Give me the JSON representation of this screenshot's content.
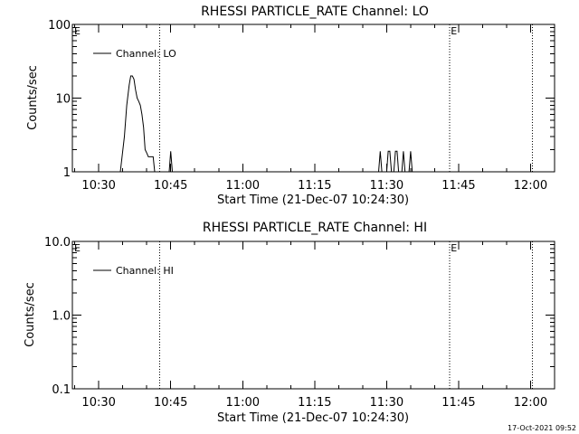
{
  "colors": {
    "background": "#ffffff",
    "foreground": "#000000"
  },
  "footer": {
    "timestamp": "17-Oct-2021 09:52"
  },
  "chart_data": [
    {
      "type": "line",
      "title": "RHESSI PARTICLE_RATE Channel: LO",
      "xlabel": "Start Time (21-Dec-07 10:24:30)",
      "ylabel": "Counts/sec",
      "yscale": "log",
      "ylim": [
        1,
        100
      ],
      "xlim": [
        "10:24:30",
        "12:05:00"
      ],
      "xticks": [
        "10:30",
        "10:45",
        "11:00",
        "11:15",
        "11:30",
        "11:45",
        "12:00"
      ],
      "yticks": [
        "1",
        "10",
        "100"
      ],
      "legend": {
        "position": "top-left",
        "entries": [
          "Channel: LO"
        ]
      },
      "vlines": [
        {
          "x": "10:42:40",
          "style": "dotted",
          "label": ""
        },
        {
          "x": "11:43:10",
          "style": "dotted",
          "label": "E"
        },
        {
          "x": "12:00:20",
          "style": "dotted",
          "label": ""
        }
      ],
      "corner_marks": [
        {
          "label": "E",
          "position": "top-left"
        }
      ],
      "grid": false,
      "series": [
        {
          "name": "Channel: LO",
          "points": [
            [
              "10:34:30",
              1
            ],
            [
              "10:35:20",
              3
            ],
            [
              "10:35:50",
              8
            ],
            [
              "10:36:20",
              15
            ],
            [
              "10:36:40",
              20
            ],
            [
              "10:37:00",
              20
            ],
            [
              "10:37:20",
              18
            ],
            [
              "10:37:40",
              13
            ],
            [
              "10:38:00",
              10
            ],
            [
              "10:38:20",
              9
            ],
            [
              "10:38:40",
              8
            ],
            [
              "10:39:00",
              6
            ],
            [
              "10:39:20",
              4
            ],
            [
              "10:39:40",
              2
            ],
            [
              "10:40:00",
              1.8
            ],
            [
              "10:40:20",
              1.6
            ],
            [
              "10:40:50",
              1.6
            ],
            [
              "10:41:20",
              1.6
            ],
            [
              "10:41:40",
              1
            ],
            [
              "10:44:40",
              1
            ],
            [
              "10:45:00",
              1.9
            ],
            [
              "10:45:20",
              1
            ],
            [
              "11:28:20",
              1
            ],
            [
              "11:28:40",
              1.9
            ],
            [
              "11:29:00",
              1
            ],
            [
              "11:30:00",
              1
            ],
            [
              "11:30:20",
              1.9
            ],
            [
              "11:30:40",
              1.9
            ],
            [
              "11:31:00",
              1
            ],
            [
              "11:31:30",
              1
            ],
            [
              "11:31:50",
              1.9
            ],
            [
              "11:32:10",
              1.9
            ],
            [
              "11:32:30",
              1
            ],
            [
              "11:33:10",
              1
            ],
            [
              "11:33:30",
              1.9
            ],
            [
              "11:33:50",
              1
            ],
            [
              "11:34:40",
              1
            ],
            [
              "11:35:00",
              1.9
            ],
            [
              "11:35:20",
              1
            ]
          ]
        }
      ]
    },
    {
      "type": "line",
      "title": "RHESSI PARTICLE_RATE Channel: HI",
      "xlabel": "Start Time (21-Dec-07 10:24:30)",
      "ylabel": "Counts/sec",
      "yscale": "log",
      "ylim": [
        0.1,
        10
      ],
      "xlim": [
        "10:24:30",
        "12:05:00"
      ],
      "xticks": [
        "10:30",
        "10:45",
        "11:00",
        "11:15",
        "11:30",
        "11:45",
        "12:00"
      ],
      "yticks": [
        "0.1",
        "1.0",
        "10.0"
      ],
      "legend": {
        "position": "top-left",
        "entries": [
          "Channel: HI"
        ]
      },
      "vlines": [
        {
          "x": "10:42:40",
          "style": "dotted",
          "label": ""
        },
        {
          "x": "11:43:10",
          "style": "dotted",
          "label": "E"
        },
        {
          "x": "12:00:20",
          "style": "dotted",
          "label": ""
        }
      ],
      "corner_marks": [
        {
          "label": "E",
          "position": "top-left"
        }
      ],
      "grid": false,
      "series": [
        {
          "name": "Channel: HI",
          "points": []
        }
      ]
    }
  ]
}
